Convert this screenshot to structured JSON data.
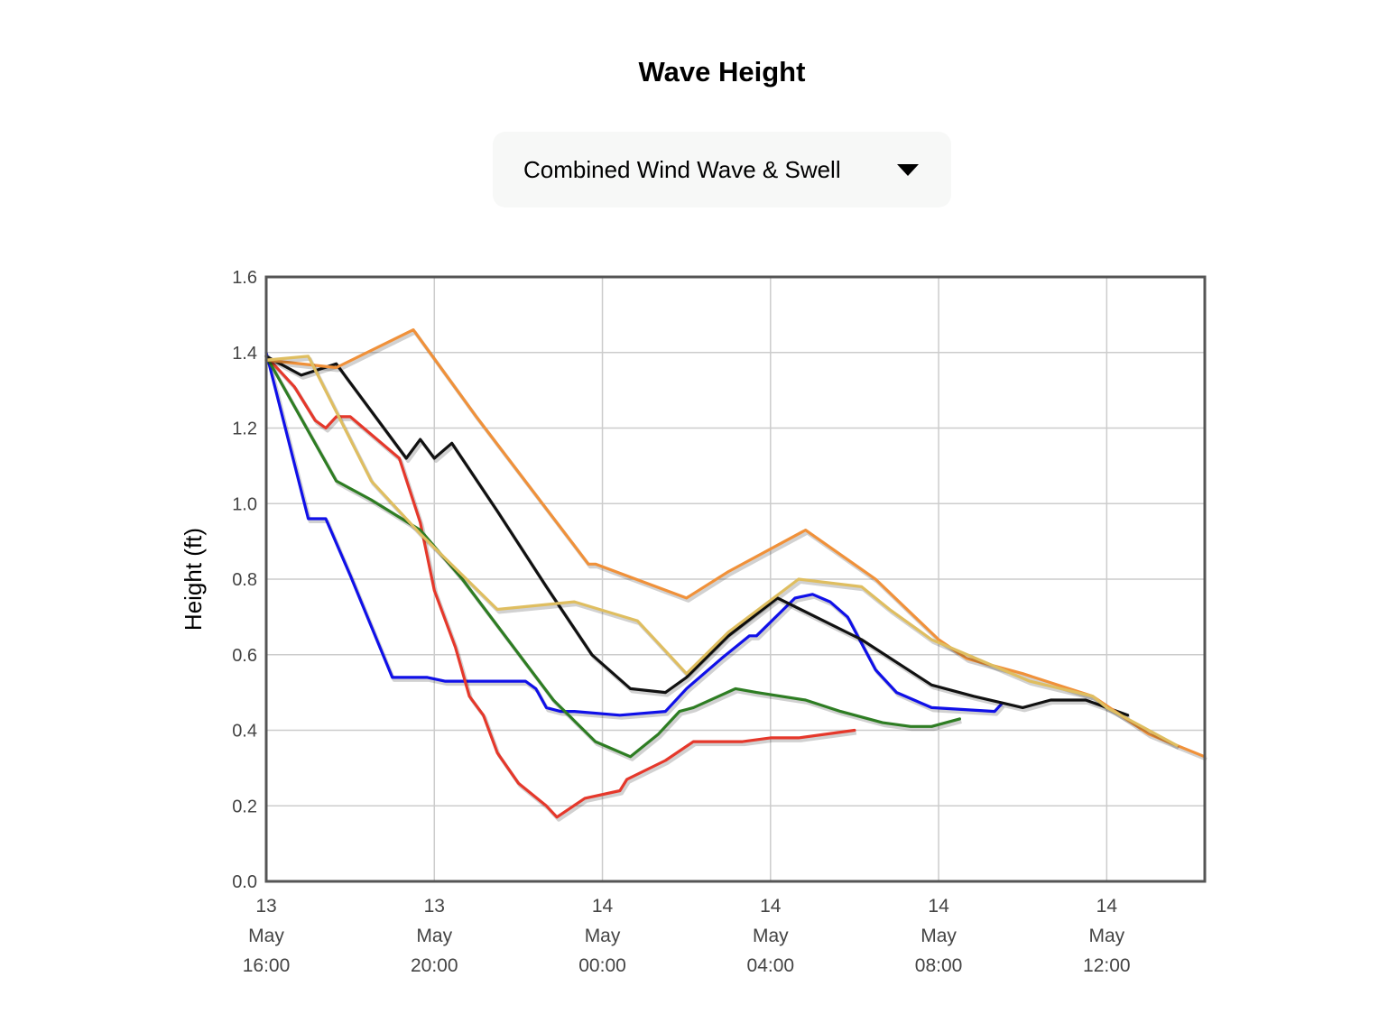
{
  "header": {
    "title": "Wave Height"
  },
  "dropdown": {
    "selected": "Combined Wind Wave & Swell"
  },
  "icons": {
    "dropdown": "caret-down-icon"
  },
  "chart_data": {
    "type": "line",
    "ylabel": "Height (ft)",
    "ylim": [
      0,
      1.6
    ],
    "yticks": [
      "0.0",
      "0.2",
      "0.4",
      "0.6",
      "0.8",
      "1.0",
      "1.2",
      "1.4",
      "1.6"
    ],
    "xlim": [
      "13 May 16:00",
      "14 May 14:20"
    ],
    "xticks": [
      {
        "day": "13",
        "month": "May",
        "time": "16:00"
      },
      {
        "day": "13",
        "month": "May",
        "time": "20:00"
      },
      {
        "day": "14",
        "month": "May",
        "time": "00:00"
      },
      {
        "day": "14",
        "month": "May",
        "time": "04:00"
      },
      {
        "day": "14",
        "month": "May",
        "time": "08:00"
      },
      {
        "day": "14",
        "month": "May",
        "time": "12:00"
      }
    ],
    "grid": true,
    "series": [
      {
        "color": "#1010e8",
        "points": [
          [
            "13 May 16:00",
            1.4
          ],
          [
            "13 May 17:00",
            0.96
          ],
          [
            "13 May 17:25",
            0.96
          ],
          [
            "13 May 18:00",
            0.81
          ],
          [
            "13 May 19:00",
            0.54
          ],
          [
            "13 May 19:50",
            0.54
          ],
          [
            "13 May 20:15",
            0.53
          ],
          [
            "13 May 22:10",
            0.53
          ],
          [
            "13 May 22:25",
            0.51
          ],
          [
            "13 May 22:40",
            0.46
          ],
          [
            "13 May 23:00",
            0.45
          ],
          [
            "13 May 23:20",
            0.45
          ],
          [
            "14 May 00:25",
            0.44
          ],
          [
            "14 May 01:30",
            0.45
          ],
          [
            "14 May 02:00",
            0.51
          ],
          [
            "14 May 02:50",
            0.59
          ],
          [
            "14 May 03:30",
            0.65
          ],
          [
            "14 May 03:40",
            0.65
          ],
          [
            "14 May 04:35",
            0.75
          ],
          [
            "14 May 05:00",
            0.76
          ],
          [
            "14 May 05:25",
            0.74
          ],
          [
            "14 May 05:50",
            0.7
          ],
          [
            "14 May 06:30",
            0.56
          ],
          [
            "14 May 07:00",
            0.5
          ],
          [
            "14 May 07:50",
            0.46
          ],
          [
            "14 May 09:20",
            0.45
          ],
          [
            "14 May 09:30",
            0.47
          ]
        ]
      },
      {
        "color": "#e5382b",
        "points": [
          [
            "13 May 16:00",
            1.39
          ],
          [
            "13 May 16:40",
            1.31
          ],
          [
            "13 May 17:10",
            1.22
          ],
          [
            "13 May 17:25",
            1.2
          ],
          [
            "13 May 17:40",
            1.23
          ],
          [
            "13 May 18:00",
            1.23
          ],
          [
            "13 May 19:10",
            1.12
          ],
          [
            "13 May 19:40",
            0.95
          ],
          [
            "13 May 20:00",
            0.77
          ],
          [
            "13 May 20:30",
            0.62
          ],
          [
            "13 May 20:50",
            0.49
          ],
          [
            "13 May 21:10",
            0.44
          ],
          [
            "13 May 21:30",
            0.34
          ],
          [
            "13 May 22:00",
            0.26
          ],
          [
            "13 May 22:40",
            0.2
          ],
          [
            "13 May 22:55",
            0.17
          ],
          [
            "13 May 23:35",
            0.22
          ],
          [
            "14 May 00:25",
            0.24
          ],
          [
            "14 May 00:35",
            0.27
          ],
          [
            "14 May 01:30",
            0.32
          ],
          [
            "14 May 02:10",
            0.37
          ],
          [
            "14 May 03:20",
            0.37
          ],
          [
            "14 May 04:00",
            0.38
          ],
          [
            "14 May 04:40",
            0.38
          ],
          [
            "14 May 06:00",
            0.4
          ]
        ]
      },
      {
        "color": "#2e7d23",
        "points": [
          [
            "13 May 16:00",
            1.39
          ],
          [
            "13 May 17:40",
            1.06
          ],
          [
            "13 May 18:30",
            1.01
          ],
          [
            "13 May 19:40",
            0.93
          ],
          [
            "13 May 20:40",
            0.8
          ],
          [
            "13 May 22:50",
            0.48
          ],
          [
            "13 May 23:50",
            0.37
          ],
          [
            "14 May 00:40",
            0.33
          ],
          [
            "14 May 01:20",
            0.39
          ],
          [
            "14 May 01:50",
            0.45
          ],
          [
            "14 May 02:10",
            0.46
          ],
          [
            "14 May 03:10",
            0.51
          ],
          [
            "14 May 03:40",
            0.5
          ],
          [
            "14 May 04:50",
            0.48
          ],
          [
            "14 May 05:40",
            0.45
          ],
          [
            "14 May 06:40",
            0.42
          ],
          [
            "14 May 07:20",
            0.41
          ],
          [
            "14 May 07:50",
            0.41
          ],
          [
            "14 May 08:30",
            0.43
          ]
        ]
      },
      {
        "color": "#111111",
        "points": [
          [
            "13 May 16:00",
            1.39
          ],
          [
            "13 May 16:50",
            1.34
          ],
          [
            "13 May 17:40",
            1.37
          ],
          [
            "13 May 19:20",
            1.12
          ],
          [
            "13 May 19:40",
            1.17
          ],
          [
            "13 May 20:00",
            1.12
          ],
          [
            "13 May 20:25",
            1.16
          ],
          [
            "13 May 21:30",
            0.98
          ],
          [
            "13 May 22:40",
            0.78
          ],
          [
            "13 May 23:45",
            0.6
          ],
          [
            "14 May 00:40",
            0.51
          ],
          [
            "14 May 01:30",
            0.5
          ],
          [
            "14 May 02:00",
            0.54
          ],
          [
            "14 May 03:00",
            0.65
          ],
          [
            "14 May 04:10",
            0.75
          ],
          [
            "14 May 06:10",
            0.64
          ],
          [
            "14 May 07:50",
            0.52
          ],
          [
            "14 May 08:50",
            0.49
          ],
          [
            "14 May 10:00",
            0.46
          ],
          [
            "14 May 10:40",
            0.48
          ],
          [
            "14 May 11:30",
            0.48
          ],
          [
            "14 May 12:30",
            0.44
          ]
        ]
      },
      {
        "color": "#f0913a",
        "points": [
          [
            "13 May 16:00",
            1.38
          ],
          [
            "13 May 17:40",
            1.36
          ],
          [
            "13 May 19:30",
            1.46
          ],
          [
            "13 May 21:00",
            1.23
          ],
          [
            "13 May 23:40",
            0.84
          ],
          [
            "13 May 23:50",
            0.84
          ],
          [
            "14 May 02:00",
            0.75
          ],
          [
            "14 May 03:00",
            0.82
          ],
          [
            "14 May 04:50",
            0.93
          ],
          [
            "14 May 06:30",
            0.8
          ],
          [
            "14 May 08:00",
            0.64
          ],
          [
            "14 May 08:40",
            0.59
          ],
          [
            "14 May 10:00",
            0.55
          ],
          [
            "14 May 11:40",
            0.49
          ],
          [
            "14 May 13:00",
            0.39
          ],
          [
            "14 May 14:20",
            0.33
          ]
        ]
      },
      {
        "color": "#dfbe60",
        "points": [
          [
            "13 May 16:00",
            1.38
          ],
          [
            "13 May 17:00",
            1.39
          ],
          [
            "13 May 18:30",
            1.06
          ],
          [
            "13 May 19:40",
            0.92
          ],
          [
            "13 May 21:30",
            0.72
          ],
          [
            "13 May 23:20",
            0.74
          ],
          [
            "14 May 00:50",
            0.69
          ],
          [
            "14 May 01:10",
            0.65
          ],
          [
            "14 May 02:00",
            0.55
          ],
          [
            "14 May 03:00",
            0.66
          ],
          [
            "14 May 04:40",
            0.8
          ],
          [
            "14 May 06:10",
            0.78
          ],
          [
            "14 May 06:50",
            0.72
          ],
          [
            "14 May 07:50",
            0.64
          ],
          [
            "14 May 10:10",
            0.53
          ],
          [
            "14 May 11:40",
            0.49
          ],
          [
            "14 May 12:00",
            0.46
          ],
          [
            "14 May 13:40",
            0.36
          ]
        ]
      }
    ]
  }
}
